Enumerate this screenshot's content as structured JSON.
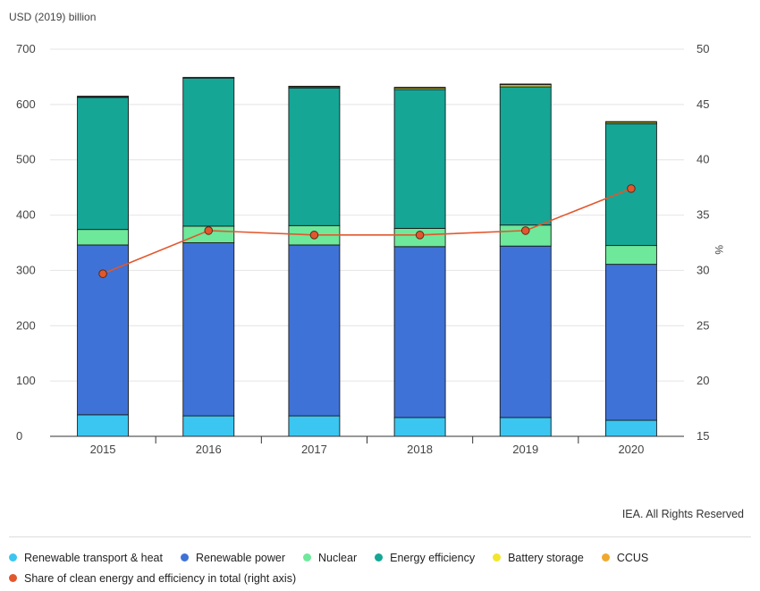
{
  "chart_data": {
    "type": "bar",
    "stacked": true,
    "left_axis_unit": "USD (2019) billion",
    "right_axis_unit": "%",
    "categories": [
      "2015",
      "2016",
      "2017",
      "2018",
      "2019",
      "2020"
    ],
    "series": [
      {
        "name": "Renewable transport & heat",
        "color": "#3ac6f0",
        "values": [
          39,
          37,
          37,
          34,
          34,
          29
        ]
      },
      {
        "name": "Renewable power",
        "color": "#3f72d6",
        "values": [
          307,
          313,
          309,
          309,
          310,
          282
        ]
      },
      {
        "name": "Nuclear",
        "color": "#6ee89a",
        "values": [
          28,
          30,
          35,
          33,
          38,
          34
        ]
      },
      {
        "name": "Energy efficiency",
        "color": "#15a696",
        "values": [
          239,
          268,
          249,
          251,
          250,
          220
        ]
      },
      {
        "name": "Battery storage",
        "color": "#f2e52c",
        "values": [
          1,
          1,
          2,
          3,
          4,
          3
        ]
      },
      {
        "name": "CCUS",
        "color": "#f0a92c",
        "values": [
          1,
          0,
          1,
          1,
          1,
          1
        ]
      }
    ],
    "line": {
      "name": "Share of clean energy and efficiency in total (right axis)",
      "color": "#e2572d",
      "axis": "right",
      "values": [
        29.7,
        33.6,
        33.2,
        33.2,
        33.6,
        37.4
      ]
    },
    "ylim_left": [
      0,
      700
    ],
    "yticks_left": [
      0,
      100,
      200,
      300,
      400,
      500,
      600,
      700
    ],
    "ylim_right": [
      15,
      50
    ],
    "yticks_right": [
      15,
      20,
      25,
      30,
      35,
      40,
      45,
      50
    ],
    "grid": true,
    "legend_position": "bottom"
  },
  "credit": "IEA. All Rights Reserved"
}
